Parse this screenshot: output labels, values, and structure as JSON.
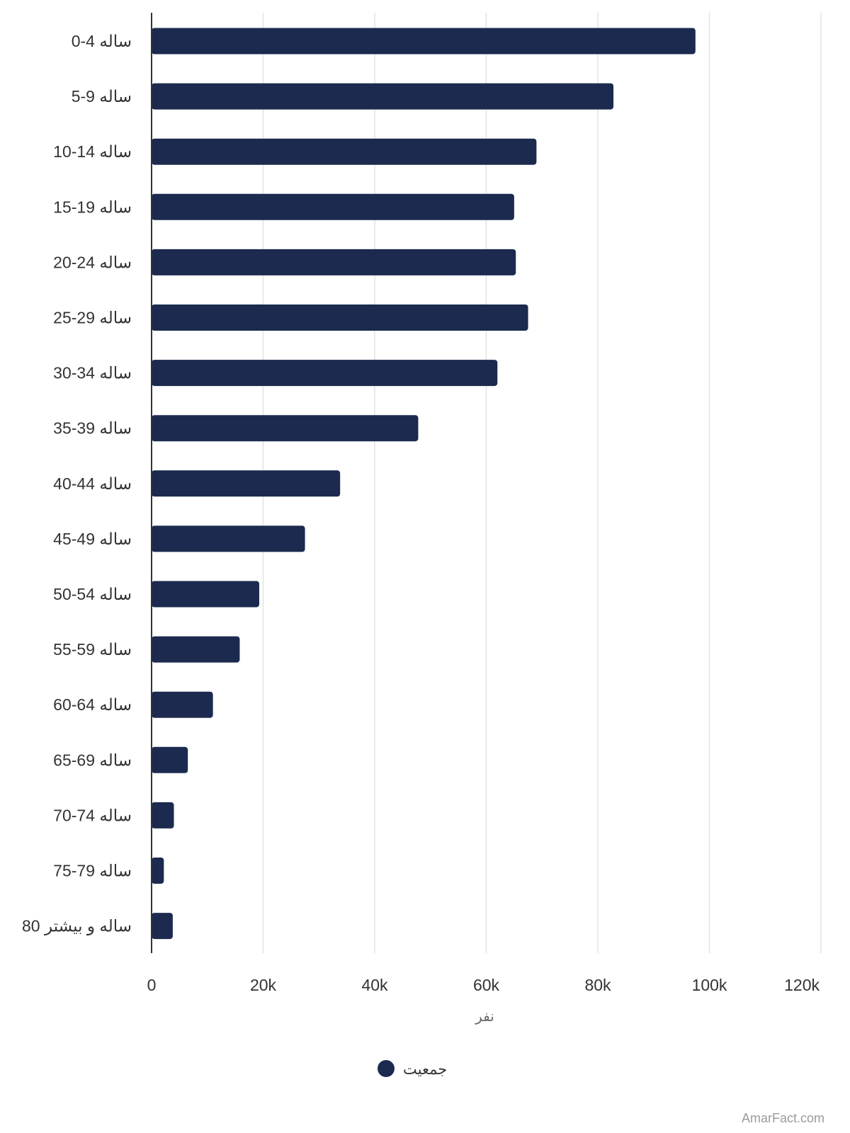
{
  "chart_data": {
    "type": "bar",
    "orientation": "horizontal",
    "categories": [
      "0-4 ساله",
      "5-9 ساله",
      "10-14 ساله",
      "15-19 ساله",
      "20-24 ساله",
      "25-29 ساله",
      "30-34 ساله",
      "35-39 ساله",
      "40-44 ساله",
      "45-49 ساله",
      "50-54 ساله",
      "55-59 ساله",
      "60-64 ساله",
      "65-69 ساله",
      "70-74 ساله",
      "75-79 ساله",
      "80 ساله و بیشتر"
    ],
    "series": [
      {
        "name": "جمعیت",
        "color": "#1b2a4e",
        "values": [
          97500,
          82800,
          69000,
          65000,
          65300,
          67500,
          62000,
          47800,
          33800,
          27500,
          19300,
          15800,
          11000,
          6500,
          4000,
          2200,
          3800
        ]
      }
    ],
    "xlabel": "نفر",
    "xticks": [
      "0",
      "20k",
      "40k",
      "60k",
      "80k",
      "100k",
      "120k"
    ],
    "xlim": [
      0,
      120000
    ],
    "grid": true,
    "legend_position": "bottom"
  },
  "watermark": "AmarFact.com"
}
